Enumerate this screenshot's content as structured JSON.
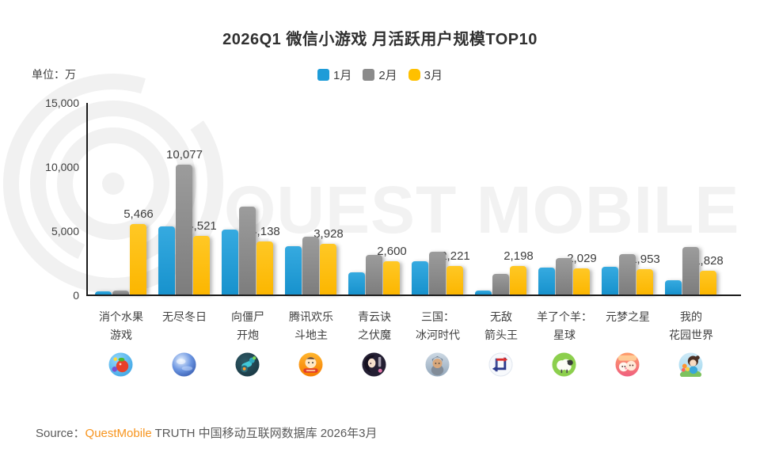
{
  "title": "2026Q1 微信小游戏 月活跃用户规模TOP10",
  "unit_label": "单位：万",
  "legend": {
    "items": [
      {
        "label": "1月",
        "color": "#1E9CD8"
      },
      {
        "label": "2月",
        "color": "#8B8B8B"
      },
      {
        "label": "3月",
        "color": "#FFC000"
      }
    ]
  },
  "source": {
    "prefix": "Source：",
    "brand": "QuestMobile",
    "suffix": " TRUTH 中国移动互联网数据库 2026年3月"
  },
  "chart_data": {
    "type": "bar",
    "title": "2026Q1 微信小游戏 月活跃用户规模TOP10",
    "unit": "万",
    "watermark": "QUEST MOBILE",
    "legend_position": "top-center",
    "grid": false,
    "y_axis": {
      "min": 0,
      "max": 15000,
      "ticks": [
        "15,000",
        "10,000",
        "5,000",
        "0"
      ]
    },
    "series_names": [
      "1月",
      "2月",
      "3月"
    ],
    "bar_colors": [
      "#1E9CD8",
      "#8B8B8B",
      "#FFC000"
    ],
    "groups": [
      {
        "name": "消个水果游戏",
        "lines": [
          "消个水果",
          "游戏"
        ],
        "icon": "fruit-game-icon",
        "values": [
          250,
          320,
          5466
        ],
        "labels": [
          null,
          null,
          "5,466"
        ]
      },
      {
        "name": "无尽冬日",
        "lines": [
          "无尽冬日"
        ],
        "icon": "frozen-planet-icon",
        "values": [
          5300,
          10077,
          4521
        ],
        "labels": [
          null,
          "10,077",
          "4,521"
        ]
      },
      {
        "name": "向僵尸开炮",
        "lines": [
          "向僵尸",
          "开炮"
        ],
        "icon": "zombie-cannon-icon",
        "values": [
          5050,
          6850,
          4138
        ],
        "labels": [
          null,
          null,
          "4,138"
        ]
      },
      {
        "name": "腾讯欢乐斗地主",
        "lines": [
          "腾讯欢乐",
          "斗地主"
        ],
        "icon": "doudizhu-icon",
        "values": [
          3750,
          4480,
          3928
        ],
        "labels": [
          null,
          null,
          "3,928"
        ]
      },
      {
        "name": "青云诀之伏魔",
        "lines": [
          "青云诀",
          "之伏魔"
        ],
        "icon": "anime-girl-icon",
        "values": [
          1750,
          3080,
          2600
        ],
        "labels": [
          null,
          null,
          "2,600"
        ]
      },
      {
        "name": "三国：冰河时代",
        "lines": [
          "三国：",
          "冰河时代"
        ],
        "icon": "warrior-icon",
        "values": [
          2600,
          3320,
          2221
        ],
        "labels": [
          null,
          null,
          "2,221"
        ]
      },
      {
        "name": "无敌箭头王",
        "lines": [
          "无敌",
          "箭头王"
        ],
        "icon": "arrow-maze-icon",
        "values": [
          330,
          1620,
          2198
        ],
        "labels": [
          null,
          null,
          "2,198"
        ]
      },
      {
        "name": "羊了个羊：星球",
        "lines": [
          "羊了个羊：",
          "星球"
        ],
        "icon": "sheep-icon",
        "values": [
          2080,
          2820,
          2029
        ],
        "labels": [
          null,
          null,
          "2,029"
        ]
      },
      {
        "name": "元梦之星",
        "lines": [
          "元梦之星"
        ],
        "icon": "party-stars-icon",
        "values": [
          2160,
          3120,
          1953
        ],
        "labels": [
          null,
          null,
          "1,953"
        ]
      },
      {
        "name": "我的花园世界",
        "lines": [
          "我的",
          "花园世界"
        ],
        "icon": "garden-girl-icon",
        "values": [
          1080,
          3700,
          1828
        ],
        "labels": [
          null,
          null,
          "1,828"
        ]
      }
    ]
  }
}
